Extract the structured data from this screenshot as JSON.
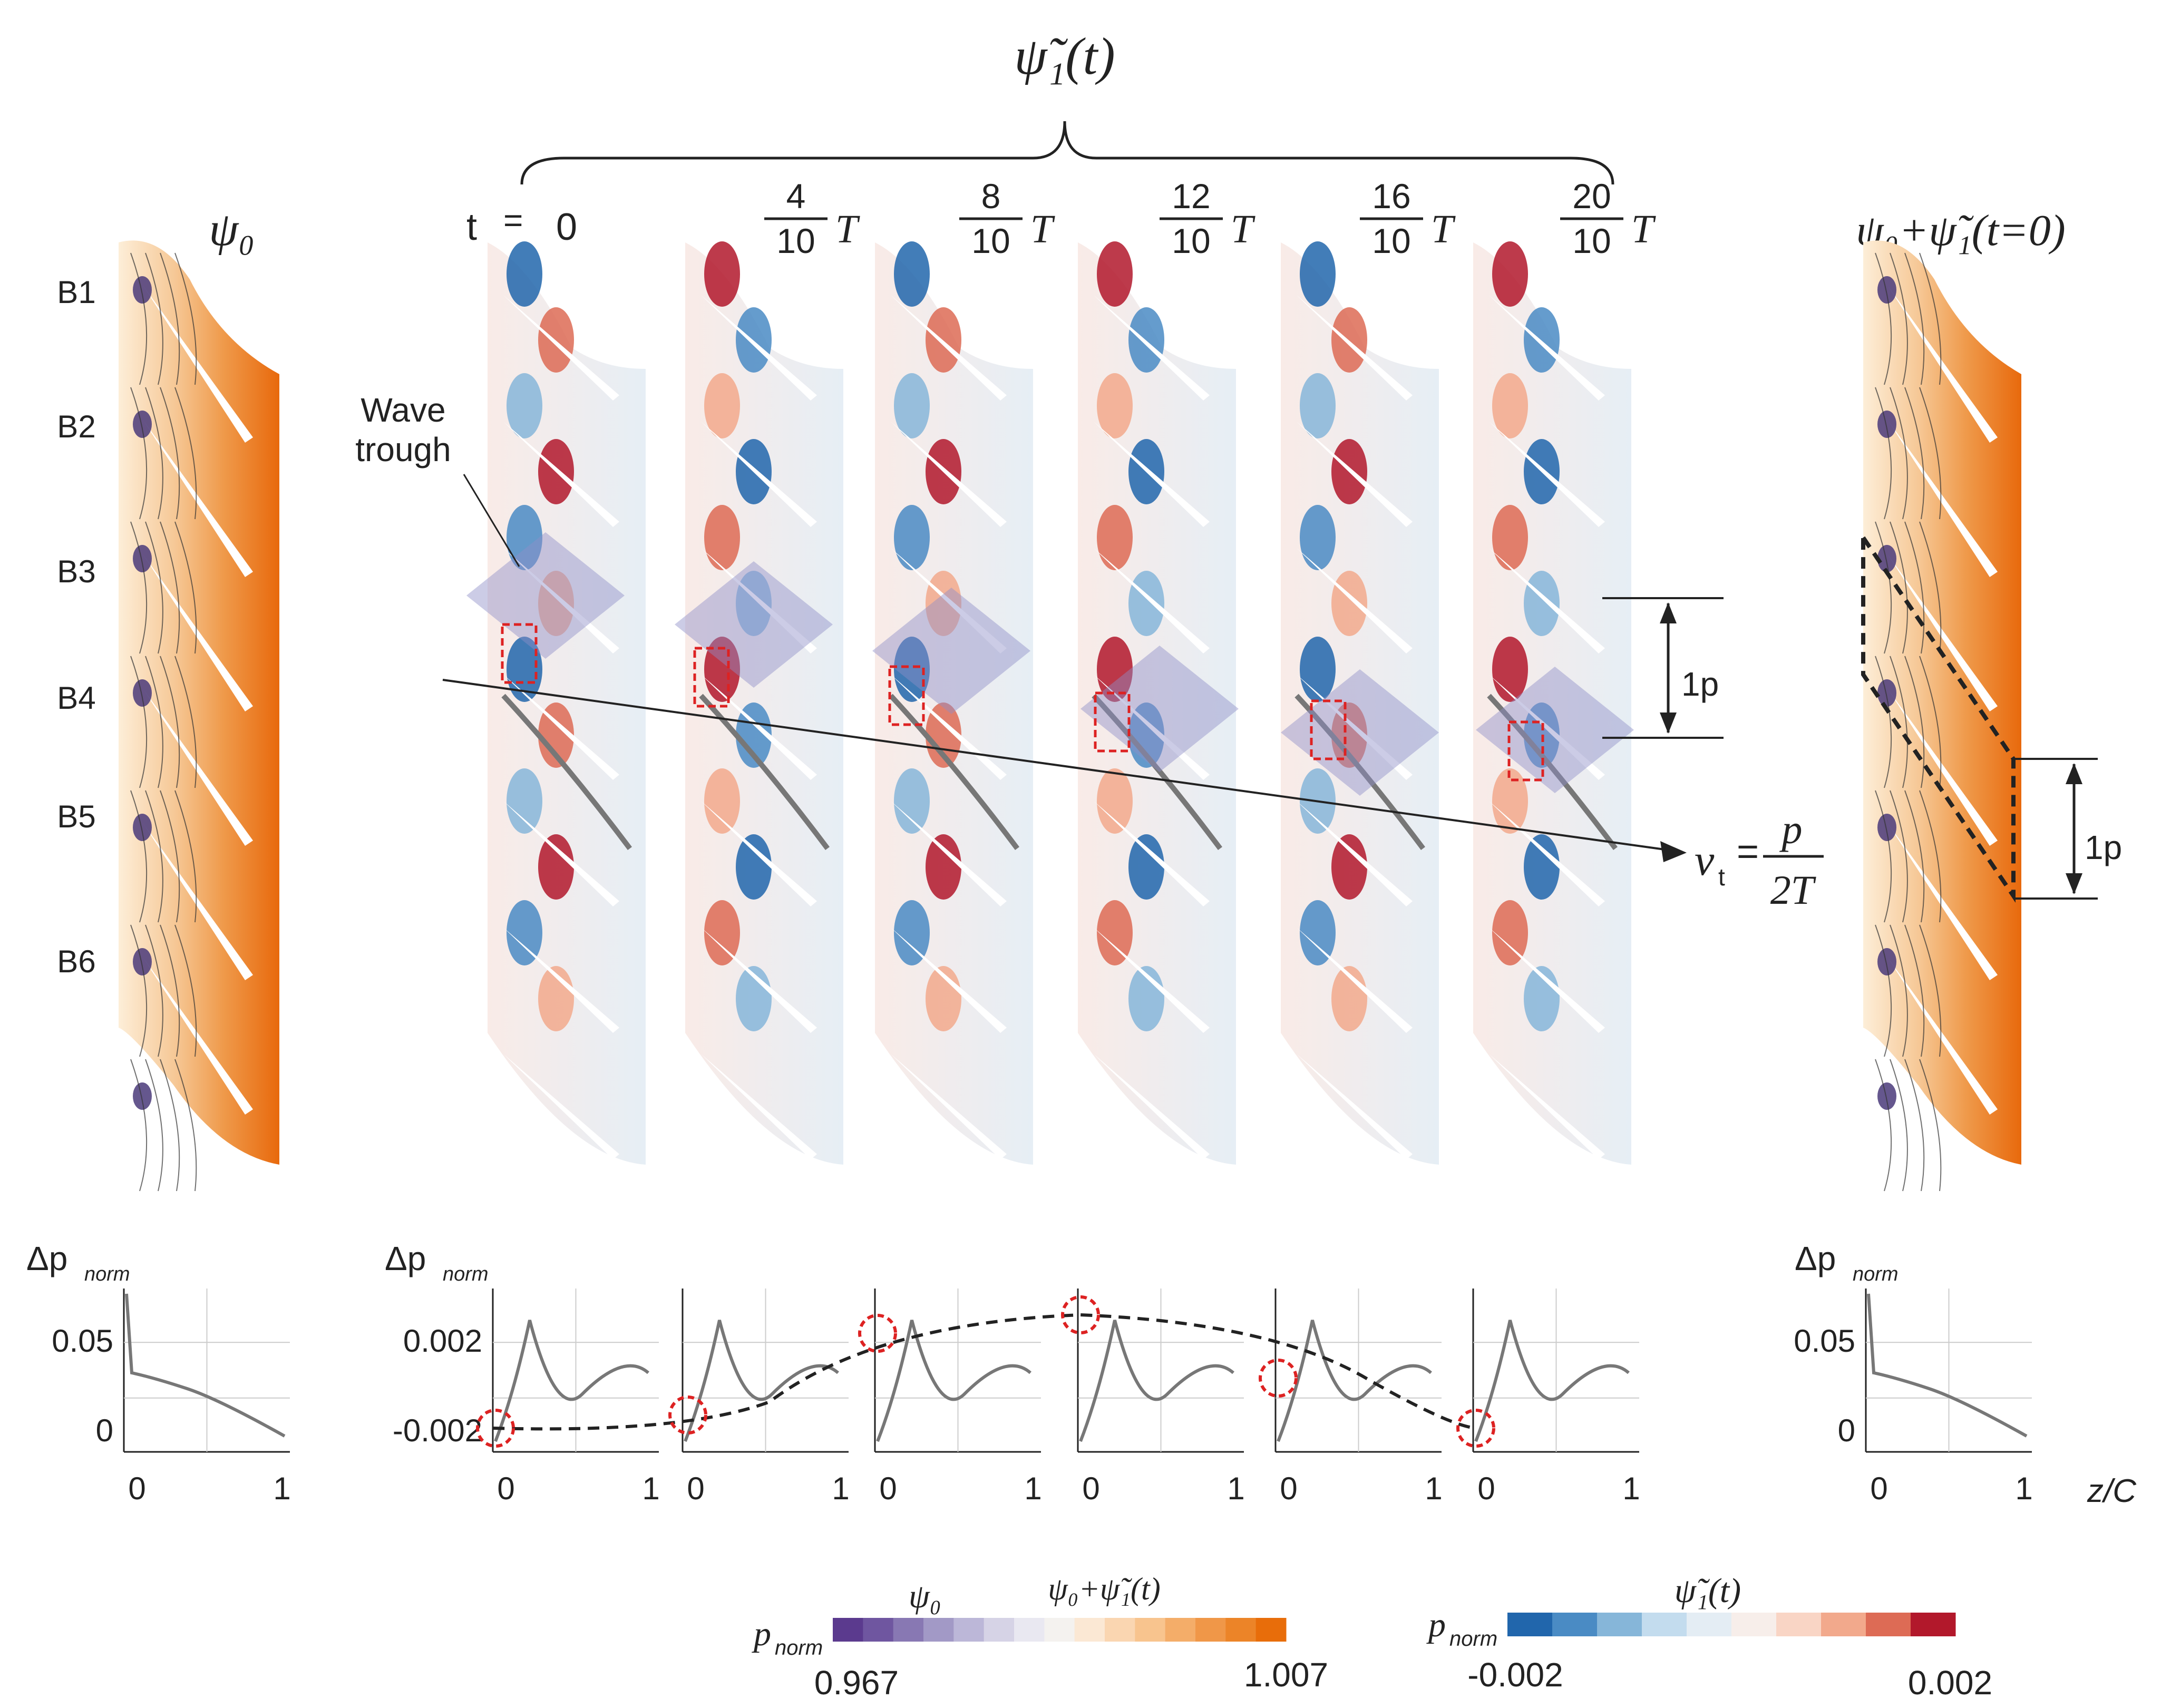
{
  "top_label": "ψ̃₁(t)",
  "left_title": "ψ₀",
  "right_title": "ψ₀+ψ̃₁(t=0)",
  "t_prefix": "t",
  "t_equals": "=",
  "time_labels": [
    {
      "num": "0",
      "den": ""
    },
    {
      "num": "4",
      "den": "10"
    },
    {
      "num": "8",
      "den": "10"
    },
    {
      "num": "12",
      "den": "10"
    },
    {
      "num": "16",
      "den": "10"
    },
    {
      "num": "20",
      "den": "10"
    }
  ],
  "period_symbol": "T",
  "blade_labels": [
    "B1",
    "B2",
    "B3",
    "B4",
    "B5",
    "B6"
  ],
  "wave_trough_label": [
    "Wave",
    "trough"
  ],
  "pitch_label": "1p",
  "velocity_label": {
    "v": "v",
    "sub": "t",
    "eq": "=",
    "num": "p",
    "den": "2T"
  },
  "bottom": {
    "ylabel": "Δp",
    "ylabel_sub": "norm",
    "xlabel": "z/C",
    "left_yticks": [
      "0.05",
      "0"
    ],
    "mid_yticks": [
      "0.002",
      "-0.002"
    ],
    "xticks": [
      "0",
      "1"
    ]
  },
  "colorbar_left": {
    "label": "p",
    "label_sub": "norm",
    "title_a": "ψ₀",
    "title_b": "ψ₀+ψ̃₁(t)",
    "min": "0.967",
    "max": "1.007",
    "colors": [
      "#5b3a8e",
      "#6f56a0",
      "#8878b3",
      "#a299c6",
      "#bcb7d8",
      "#d6d3e6",
      "#e9e8f1",
      "#f4f2ef",
      "#fbe8d4",
      "#fad6b1",
      "#f8c48e",
      "#f4ad69",
      "#f09748",
      "#ec8428",
      "#e86d0a"
    ]
  },
  "colorbar_right": {
    "label": "p",
    "label_sub": "norm",
    "title": "ψ̃₁(t)",
    "min": "-0.002",
    "max": "0.002",
    "colors": [
      "#2166ac",
      "#4a8bc4",
      "#86b6d9",
      "#c3dcee",
      "#e4edf4",
      "#f7eeea",
      "#f9d5c5",
      "#f2a98c",
      "#dd6b55",
      "#b2182b"
    ]
  },
  "colors": {
    "orange": "#e8690c",
    "wave_highlight": "#8f8fc8",
    "marker_red": "#dd2222",
    "line_gray": "#777777"
  }
}
